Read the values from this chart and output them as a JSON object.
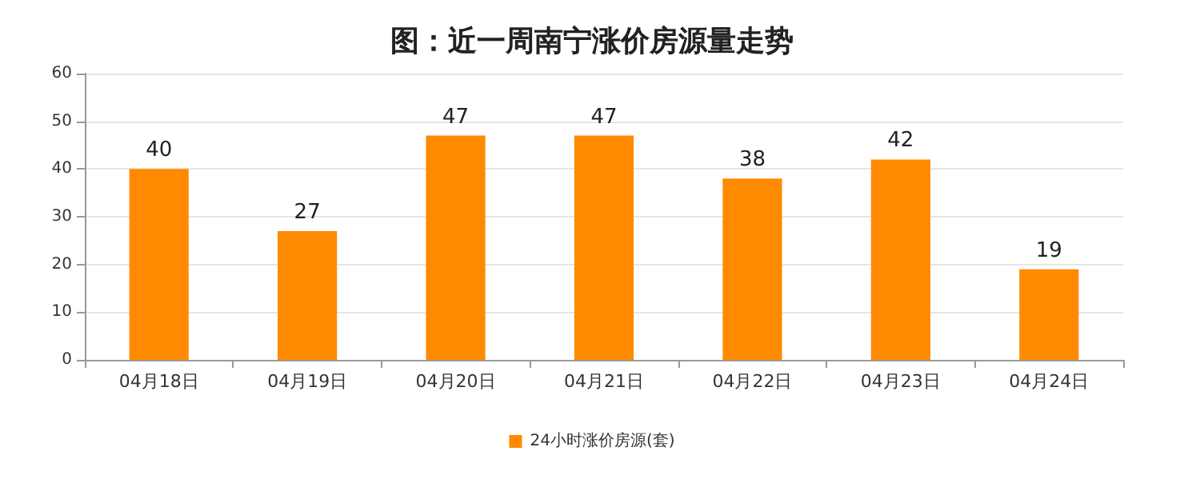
{
  "chart_data": {
    "type": "bar",
    "title": "图：近一周南宁涨价房源量走势",
    "categories": [
      "04月18日",
      "04月19日",
      "04月20日",
      "04月21日",
      "04月22日",
      "04月23日",
      "04月24日"
    ],
    "series": [
      {
        "name": "24小时涨价房源(套)",
        "color": "#ff8a00",
        "values": [
          40,
          27,
          47,
          47,
          38,
          42,
          19
        ]
      }
    ],
    "ylim": [
      0,
      60
    ],
    "yticks": [
      0,
      10,
      20,
      30,
      40,
      50,
      60
    ],
    "grid": "y",
    "legend": "bottom",
    "data_labels": true
  }
}
